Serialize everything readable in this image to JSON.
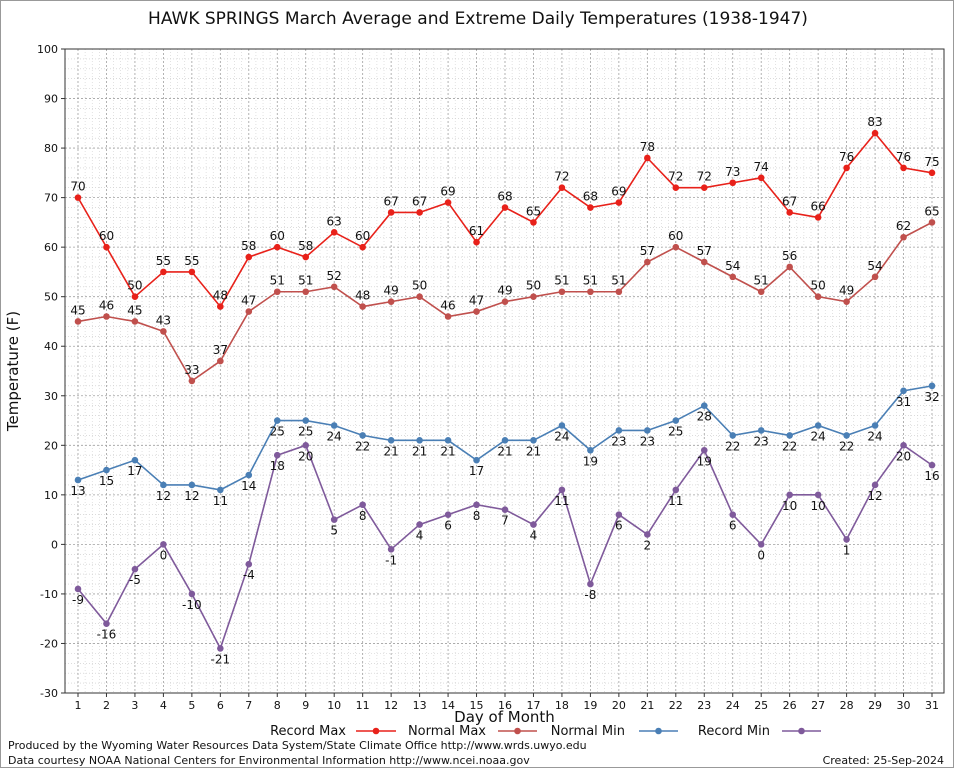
{
  "chart_data": {
    "type": "line",
    "title": "HAWK SPRINGS March Average and Extreme Daily Temperatures (1938-1947)",
    "xlabel": "Day of Month",
    "ylabel": "Temperature (F)",
    "ylim": [
      -30,
      100
    ],
    "xlim": [
      1,
      31
    ],
    "yticks": [
      -30,
      -20,
      -10,
      0,
      10,
      20,
      30,
      40,
      50,
      60,
      70,
      80,
      90,
      100
    ],
    "x": [
      1,
      2,
      3,
      4,
      5,
      6,
      7,
      8,
      9,
      10,
      11,
      12,
      13,
      14,
      15,
      16,
      17,
      18,
      19,
      20,
      21,
      22,
      23,
      24,
      25,
      26,
      27,
      28,
      29,
      30,
      31
    ],
    "grid": true,
    "legend_position": "bottom",
    "series": [
      {
        "name": "Record Max",
        "color": "#e8211a",
        "label_position": "above",
        "values": [
          70,
          60,
          50,
          55,
          55,
          48,
          58,
          60,
          58,
          63,
          60,
          67,
          67,
          69,
          61,
          68,
          65,
          72,
          68,
          69,
          78,
          72,
          72,
          73,
          74,
          67,
          66,
          76,
          83,
          76,
          75
        ]
      },
      {
        "name": "Normal Max",
        "color": "#c0504d",
        "label_position": "above",
        "values": [
          45,
          46,
          45,
          43,
          33,
          37,
          47,
          51,
          51,
          52,
          48,
          49,
          50,
          46,
          47,
          49,
          50,
          51,
          51,
          51,
          57,
          60,
          57,
          54,
          51,
          56,
          50,
          49,
          54,
          62,
          65
        ]
      },
      {
        "name": "Normal Min",
        "color": "#4a7fb5",
        "label_position": "below",
        "values": [
          13,
          15,
          17,
          12,
          12,
          11,
          14,
          25,
          25,
          24,
          22,
          21,
          21,
          21,
          17,
          21,
          21,
          24,
          19,
          23,
          23,
          25,
          28,
          22,
          23,
          22,
          24,
          22,
          24,
          31,
          32
        ]
      },
      {
        "name": "Record Min",
        "color": "#7f5a9b",
        "label_position": "below",
        "values": [
          -9,
          -16,
          -5,
          0,
          -10,
          -21,
          -4,
          18,
          20,
          5,
          8,
          -1,
          4,
          6,
          8,
          7,
          4,
          11,
          -8,
          6,
          2,
          11,
          19,
          6,
          0,
          10,
          10,
          1,
          12,
          20,
          16
        ]
      }
    ]
  },
  "footer": {
    "producer": "Produced by the Wyoming Water Resources Data System/State Climate Office http://www.wrds.uwyo.edu",
    "source": "Data courtesy NOAA National Centers for Environmental Information http://www.ncei.noaa.gov",
    "created": "Created: 25-Sep-2024"
  }
}
